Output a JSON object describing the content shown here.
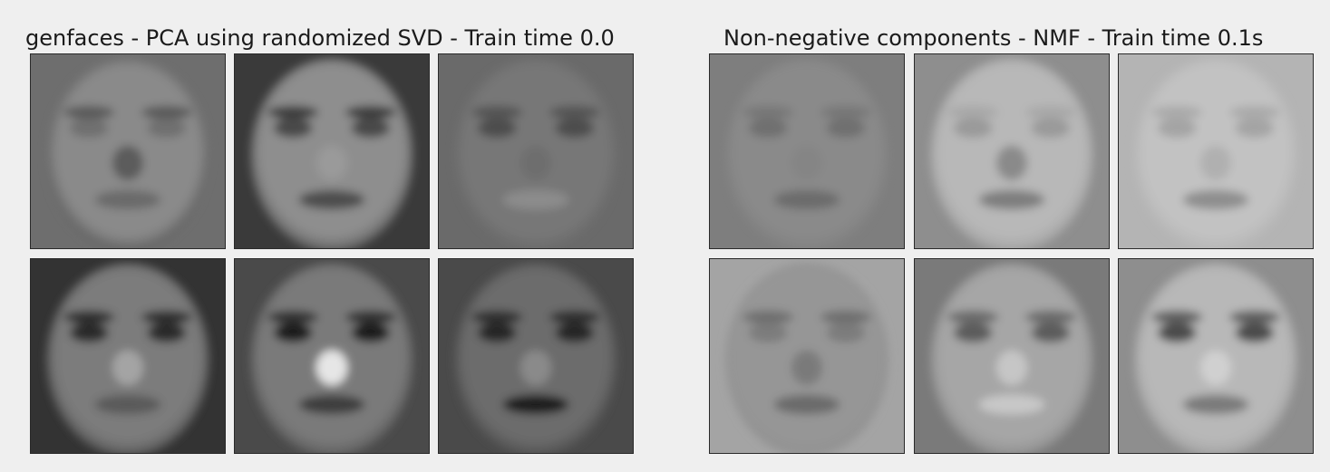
{
  "left_panel": {
    "title": "genfaces - PCA using randomized SVD - Train time 0.0",
    "components": [
      {
        "tone": "#8a8a8a",
        "bg": "#6e6e6e",
        "eyes": "#6f6f6f",
        "brow": "#5a5a5a",
        "mouth": "#6a6a6a",
        "nose": "#5c5c5c",
        "edge": "#2e2e2e"
      },
      {
        "tone": "#8e8e8e",
        "bg": "#3a3a3a",
        "eyes": "#4a4a4a",
        "brow": "#3c3c3c",
        "mouth": "#4e4e4e",
        "nose": "#9a9a9a",
        "edge": "#2c2c2c"
      },
      {
        "tone": "#777777",
        "bg": "#6a6a6a",
        "eyes": "#4e4e4e",
        "brow": "#555555",
        "mouth": "#8c8c8c",
        "nose": "#6e6e6e",
        "edge": "#5a5a5a"
      },
      {
        "tone": "#7c7c7c",
        "bg": "#333333",
        "eyes": "#2a2a2a",
        "brow": "#2e2e2e",
        "mouth": "#5a5a5a",
        "nose": "#a4a4a4",
        "edge": "#2a2a2a"
      },
      {
        "tone": "#7a7a7a",
        "bg": "#4a4a4a",
        "eyes": "#1e1e1e",
        "brow": "#333333",
        "mouth": "#3e3e3e",
        "nose": "#e6e6e6",
        "edge": "#3e3e3e"
      },
      {
        "tone": "#6c6c6c",
        "bg": "#4a4a4a",
        "eyes": "#252525",
        "brow": "#2e2e2e",
        "mouth": "#1e1e1e",
        "nose": "#8a8a8a",
        "edge": "#303030"
      }
    ]
  },
  "right_panel": {
    "title": "Non-negative components - NMF - Train time 0.1s",
    "components": [
      {
        "tone": "#8a8a8a",
        "bg": "#7e7e7e",
        "eyes": "#707070",
        "brow": "#777777",
        "mouth": "#6c6c6c",
        "nose": "#858585",
        "edge": "#747474"
      },
      {
        "tone": "#b8b8b8",
        "bg": "#8e8e8e",
        "eyes": "#9a9a9a",
        "brow": "#a8a8a8",
        "mouth": "#7e7e7e",
        "nose": "#8a8a8a",
        "edge": "#8a8a8a"
      },
      {
        "tone": "#c2c2c2",
        "bg": "#b4b4b4",
        "eyes": "#a4a4a4",
        "brow": "#aaaaaa",
        "mouth": "#8e8e8e",
        "nose": "#b0b0b0",
        "edge": "#a8a8a8"
      },
      {
        "tone": "#969696",
        "bg": "#a4a4a4",
        "eyes": "#7c7c7c",
        "brow": "#6e6e6e",
        "mouth": "#6a6a6a",
        "nose": "#7a7a7a",
        "edge": "#8c8c8c"
      },
      {
        "tone": "#a6a6a6",
        "bg": "#7a7a7a",
        "eyes": "#5c5c5c",
        "brow": "#6a6a6a",
        "mouth": "#c8c8c8",
        "nose": "#c6c6c6",
        "edge": "#727272"
      },
      {
        "tone": "#b8b8b8",
        "bg": "#8e8e8e",
        "eyes": "#4c4c4c",
        "brow": "#5e5e5e",
        "mouth": "#7a7a7a",
        "nose": "#d0d0d0",
        "edge": "#888888"
      }
    ]
  }
}
